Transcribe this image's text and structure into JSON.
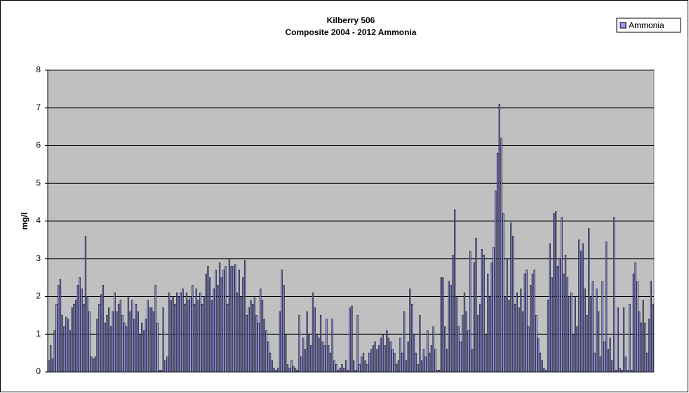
{
  "chart_data": {
    "type": "bar",
    "title": "Kilberry 506",
    "subtitle": "Composite 2004 - 2012 Ammonia",
    "y_label": "mg/l",
    "ylim": [
      0,
      8
    ],
    "yticks": [
      0,
      1,
      2,
      3,
      4,
      5,
      6,
      7,
      8
    ],
    "grid": true,
    "legend": "top-right",
    "series": [
      {
        "name": "Ammonia",
        "color": "#9999ff",
        "values": [
          0.3,
          0.7,
          0.35,
          1.1,
          1.8,
          2.3,
          2.45,
          1.5,
          1.2,
          1.45,
          1.4,
          1.1,
          1.7,
          1.8,
          1.9,
          2.3,
          2.5,
          2.2,
          1.8,
          3.6,
          2.0,
          1.6,
          0.4,
          0.35,
          0.4,
          1.4,
          1.8,
          2.05,
          2.3,
          1.3,
          1.5,
          1.7,
          1.2,
          1.6,
          2.1,
          1.6,
          1.8,
          1.9,
          1.5,
          1.3,
          1.2,
          2.0,
          1.6,
          1.9,
          1.4,
          1.8,
          1.6,
          1.0,
          1.3,
          1.1,
          1.4,
          1.9,
          1.7,
          1.7,
          1.6,
          2.3,
          1.3,
          0.05,
          0.05,
          1.7,
          0.3,
          0.4,
          2.1,
          1.9,
          2.0,
          1.8,
          2.1,
          2.0,
          2.1,
          2.2,
          1.8,
          2.1,
          1.9,
          2.0,
          2.3,
          1.8,
          2.2,
          1.9,
          2.1,
          1.8,
          2.0,
          2.6,
          2.8,
          2.5,
          1.9,
          2.2,
          2.7,
          2.3,
          2.9,
          2.5,
          2.7,
          2.8,
          1.8,
          3.0,
          2.8,
          2.8,
          2.85,
          2.1,
          2.7,
          2.0,
          2.5,
          2.95,
          1.5,
          1.7,
          1.9,
          1.8,
          2.0,
          1.5,
          1.3,
          2.2,
          1.9,
          1.4,
          1.1,
          0.8,
          0.5,
          0.3,
          0.1,
          0.05,
          0.1,
          1.6,
          2.7,
          2.3,
          1.0,
          0.2,
          0.1,
          0.3,
          0.15,
          0.1,
          0.05,
          1.5,
          0.4,
          0.9,
          0.6,
          1.6,
          1.0,
          0.7,
          2.1,
          1.7,
          1.0,
          0.9,
          1.5,
          0.8,
          0.7,
          1.4,
          0.7,
          0.5,
          1.4,
          0.3,
          0.2,
          0.05,
          0.1,
          0.2,
          0.1,
          0.3,
          0.05,
          1.7,
          1.75,
          0.3,
          0.05,
          1.5,
          0.2,
          0.4,
          0.5,
          0.3,
          0.2,
          0.5,
          0.6,
          0.7,
          0.8,
          0.6,
          0.7,
          0.9,
          1.0,
          0.7,
          1.1,
          0.9,
          0.8,
          0.6,
          0.5,
          0.2,
          0.3,
          0.9,
          0.5,
          1.6,
          0.3,
          0.8,
          2.2,
          1.8,
          1.0,
          0.5,
          0.2,
          1.5,
          0.3,
          0.6,
          0.4,
          1.1,
          0.5,
          0.7,
          1.2,
          0.6,
          0.05,
          0.05,
          2.5,
          2.5,
          1.2,
          0.6,
          2.4,
          2.3,
          3.1,
          4.3,
          2.0,
          1.2,
          0.8,
          1.5,
          2.1,
          1.6,
          1.1,
          3.2,
          0.6,
          2.9,
          3.55,
          1.5,
          1.8,
          3.25,
          3.1,
          1.0,
          2.6,
          2.0,
          2.9,
          3.3,
          4.8,
          5.8,
          7.1,
          6.2,
          4.2,
          2.0,
          3.0,
          1.9,
          3.95,
          3.6,
          1.8,
          2.1,
          1.7,
          2.2,
          1.6,
          2.6,
          2.7,
          1.2,
          2.3,
          2.6,
          2.7,
          1.5,
          0.9,
          0.5,
          0.3,
          0.1,
          0.05,
          1.9,
          3.4,
          2.5,
          4.2,
          4.25,
          2.8,
          3.0,
          4.1,
          2.6,
          3.1,
          2.5,
          2.0,
          2.1,
          1.0,
          2.0,
          1.2,
          3.5,
          3.2,
          3.4,
          2.2,
          1.5,
          3.8,
          2.0,
          2.4,
          0.5,
          2.2,
          1.6,
          0.4,
          2.4,
          0.8,
          3.45,
          0.6,
          0.9,
          0.3,
          4.1,
          0.05,
          1.7,
          0.1,
          0.05,
          1.7,
          0.4,
          0.05,
          1.8,
          0.05,
          2.6,
          2.9,
          2.4,
          1.6,
          1.3,
          1.9,
          1.3,
          0.5,
          1.4,
          2.4,
          1.8
        ]
      }
    ]
  }
}
